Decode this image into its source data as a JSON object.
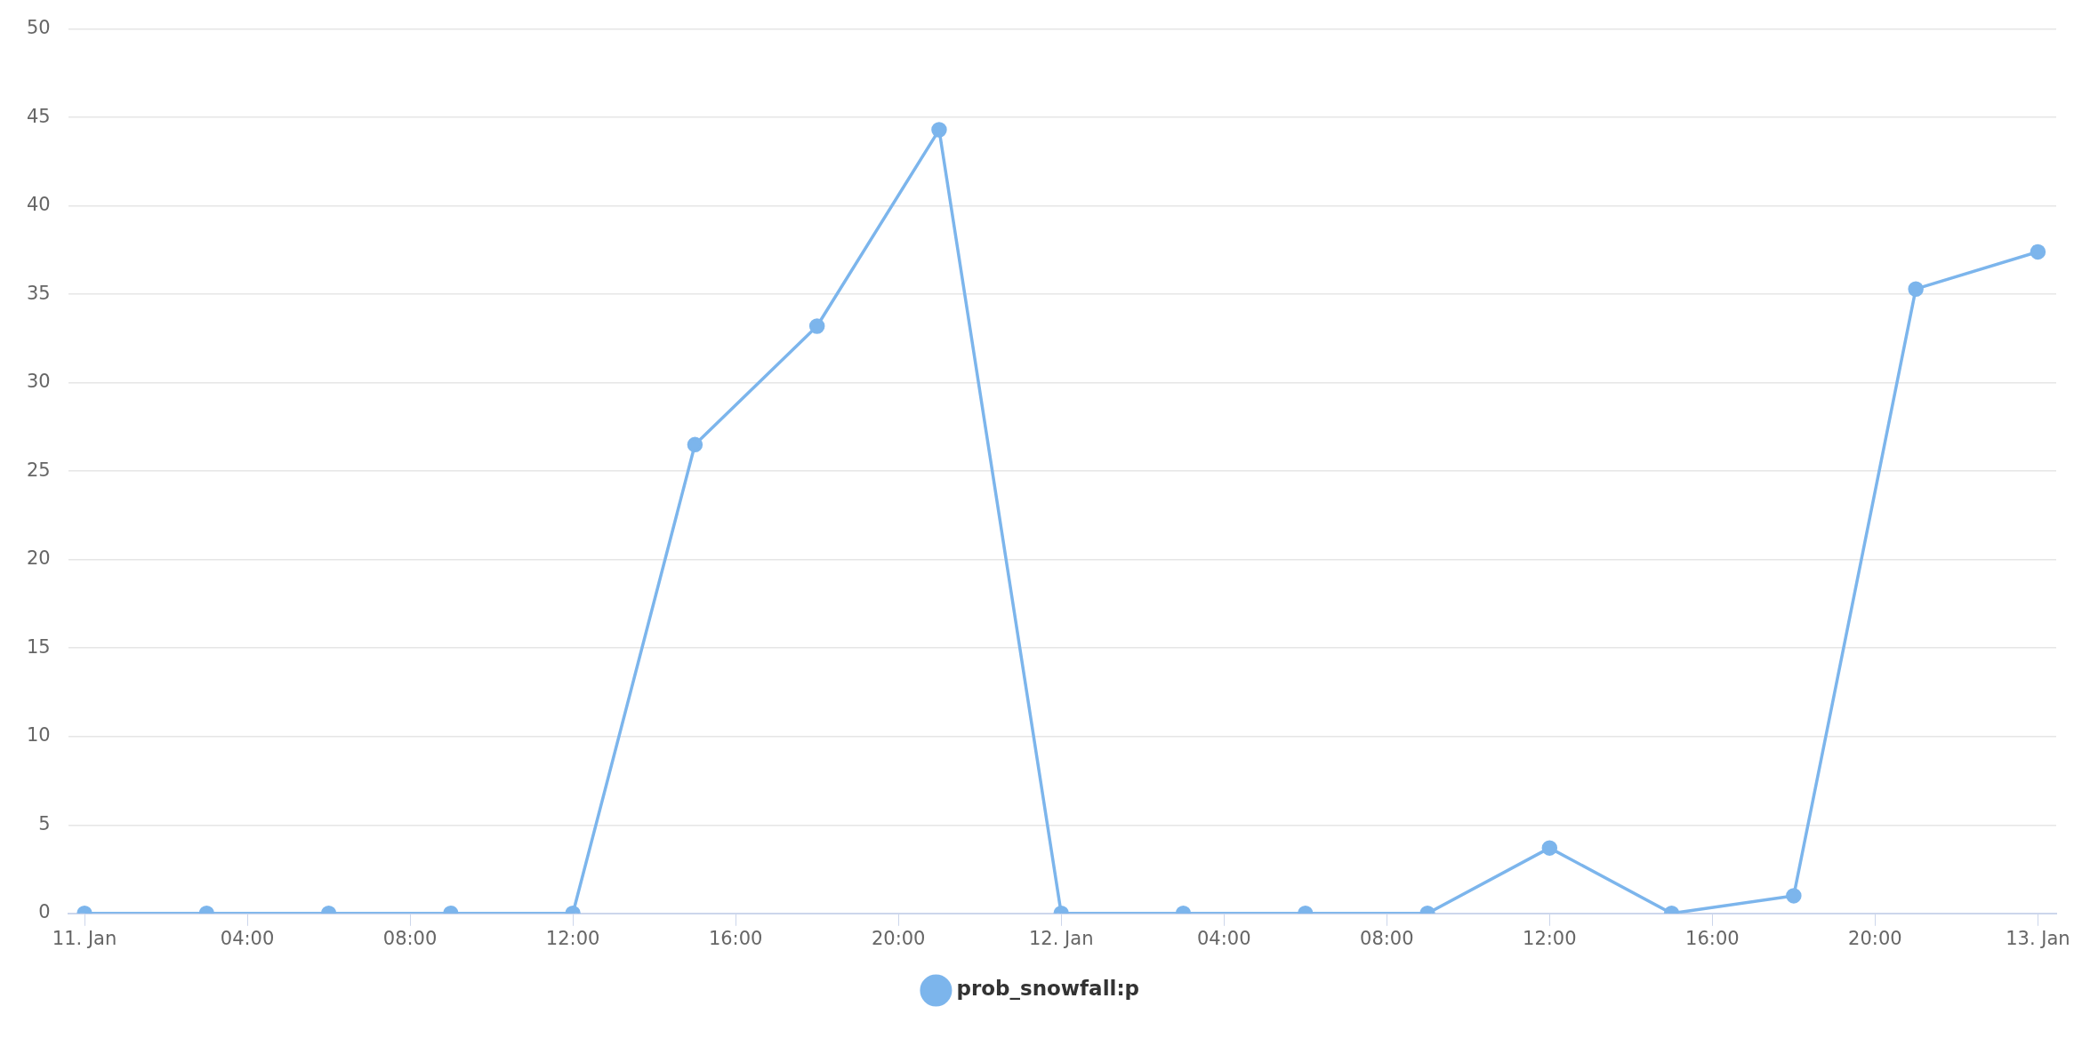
{
  "chart_data": {
    "type": "line",
    "x": [
      "--01-11T00:00",
      "--01-11T03:00",
      "--01-11T06:00",
      "--01-11T09:00",
      "--01-11T12:00",
      "--01-11T15:00",
      "--01-11T18:00",
      "--01-11T21:00",
      "--01-12T00:00",
      "--01-12T03:00",
      "--01-12T06:00",
      "--01-12T09:00",
      "--01-12T12:00",
      "--01-12T15:00",
      "--01-12T18:00",
      "--01-12T21:00",
      "--01-13T00:00"
    ],
    "series": [
      {
        "name": "prob_snowfall:p",
        "color": "#7cb5ec",
        "values": [
          0,
          0,
          0,
          0,
          0,
          26.5,
          33.2,
          44.3,
          0,
          0,
          0,
          0,
          3.7,
          0,
          1.0,
          35.3,
          37.4
        ]
      }
    ],
    "xlim": [
      "--01-10T23:36",
      "--01-13T00:27"
    ],
    "xticks": [
      {
        "value": "--01-11T00:00",
        "label": "11. Jan"
      },
      {
        "value": "--01-11T04:00",
        "label": "04:00"
      },
      {
        "value": "--01-11T08:00",
        "label": "08:00"
      },
      {
        "value": "--01-11T12:00",
        "label": "12:00"
      },
      {
        "value": "--01-11T16:00",
        "label": "16:00"
      },
      {
        "value": "--01-11T20:00",
        "label": "20:00"
      },
      {
        "value": "--01-12T00:00",
        "label": "12. Jan"
      },
      {
        "value": "--01-12T04:00",
        "label": "04:00"
      },
      {
        "value": "--01-12T08:00",
        "label": "08:00"
      },
      {
        "value": "--01-12T12:00",
        "label": "12:00"
      },
      {
        "value": "--01-12T16:00",
        "label": "16:00"
      },
      {
        "value": "--01-12T20:00",
        "label": "20:00"
      },
      {
        "value": "--01-13T00:00",
        "label": "13. Jan"
      }
    ],
    "ylim": [
      0,
      50
    ],
    "yticks": [
      0,
      5,
      10,
      15,
      20,
      25,
      30,
      35,
      40,
      45,
      50
    ],
    "grid": "y",
    "legend": "bottom",
    "marker": "circle"
  }
}
